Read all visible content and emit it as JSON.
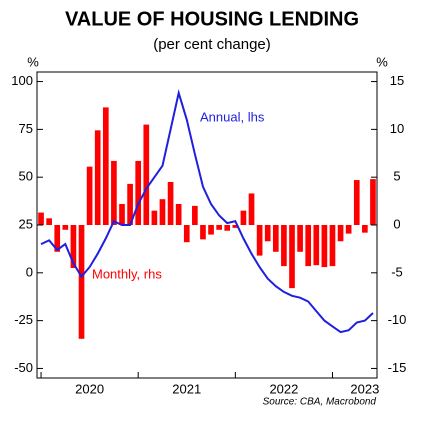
{
  "chart_data": {
    "type": "bar-line",
    "title": "VALUE OF HOUSING LENDING",
    "subtitle": "(per cent change)",
    "y_label": "%",
    "y2_label": "%",
    "source": "Source: CBA, Macrobond",
    "categories": [
      null,
      null,
      null,
      null,
      null,
      null,
      "2020",
      null,
      null,
      null,
      null,
      null,
      null,
      null,
      null,
      null,
      null,
      null,
      "2021",
      null,
      null,
      null,
      null,
      null,
      null,
      null,
      null,
      null,
      null,
      null,
      "2022",
      null,
      null,
      null,
      null,
      null,
      null,
      null,
      null,
      null,
      "2023",
      null
    ],
    "series": [
      {
        "name": "Annual, lhs",
        "color": "#1f1fe0",
        "type": "line",
        "values": [
          15,
          17,
          12,
          15,
          5,
          -2,
          3,
          10,
          18,
          27,
          25,
          25,
          36,
          44,
          50,
          56,
          75,
          94,
          80,
          62,
          45,
          36,
          30,
          26,
          27,
          18,
          10,
          3,
          -3,
          -7,
          -10,
          -12,
          -13,
          -15,
          -20,
          -25,
          -28,
          -31,
          -30,
          -26,
          -25,
          -21
        ]
      },
      {
        "name": "Monthly, rhs",
        "color": "#ff0000",
        "type": "bar",
        "axis": "y2",
        "values": [
          1.3,
          0.7,
          -2.8,
          -0.5,
          -4.5,
          -11.9,
          6.1,
          9.9,
          12.3,
          6.7,
          2.2,
          4.3,
          6.7,
          10.5,
          1.5,
          2.7,
          4.5,
          2.2,
          -1.8,
          2,
          -1.5,
          -1.0,
          -0.5,
          -0.6,
          -0.3,
          1.5,
          3.3,
          -3.2,
          -1.7,
          -2.8,
          -4.3,
          -6.6,
          -2.8,
          -4.3,
          -4.2,
          -4.4,
          -4.3,
          -1.7,
          -0.9,
          4.7,
          -0.8,
          4.8
        ]
      }
    ],
    "ylim": [
      -55,
      105
    ],
    "yticks": [
      100,
      75,
      50,
      25,
      0,
      -25,
      -50
    ],
    "y2lim": [
      -16,
      16
    ],
    "y2ticks": [
      15,
      10,
      5,
      0,
      -5,
      -10,
      -15
    ]
  }
}
